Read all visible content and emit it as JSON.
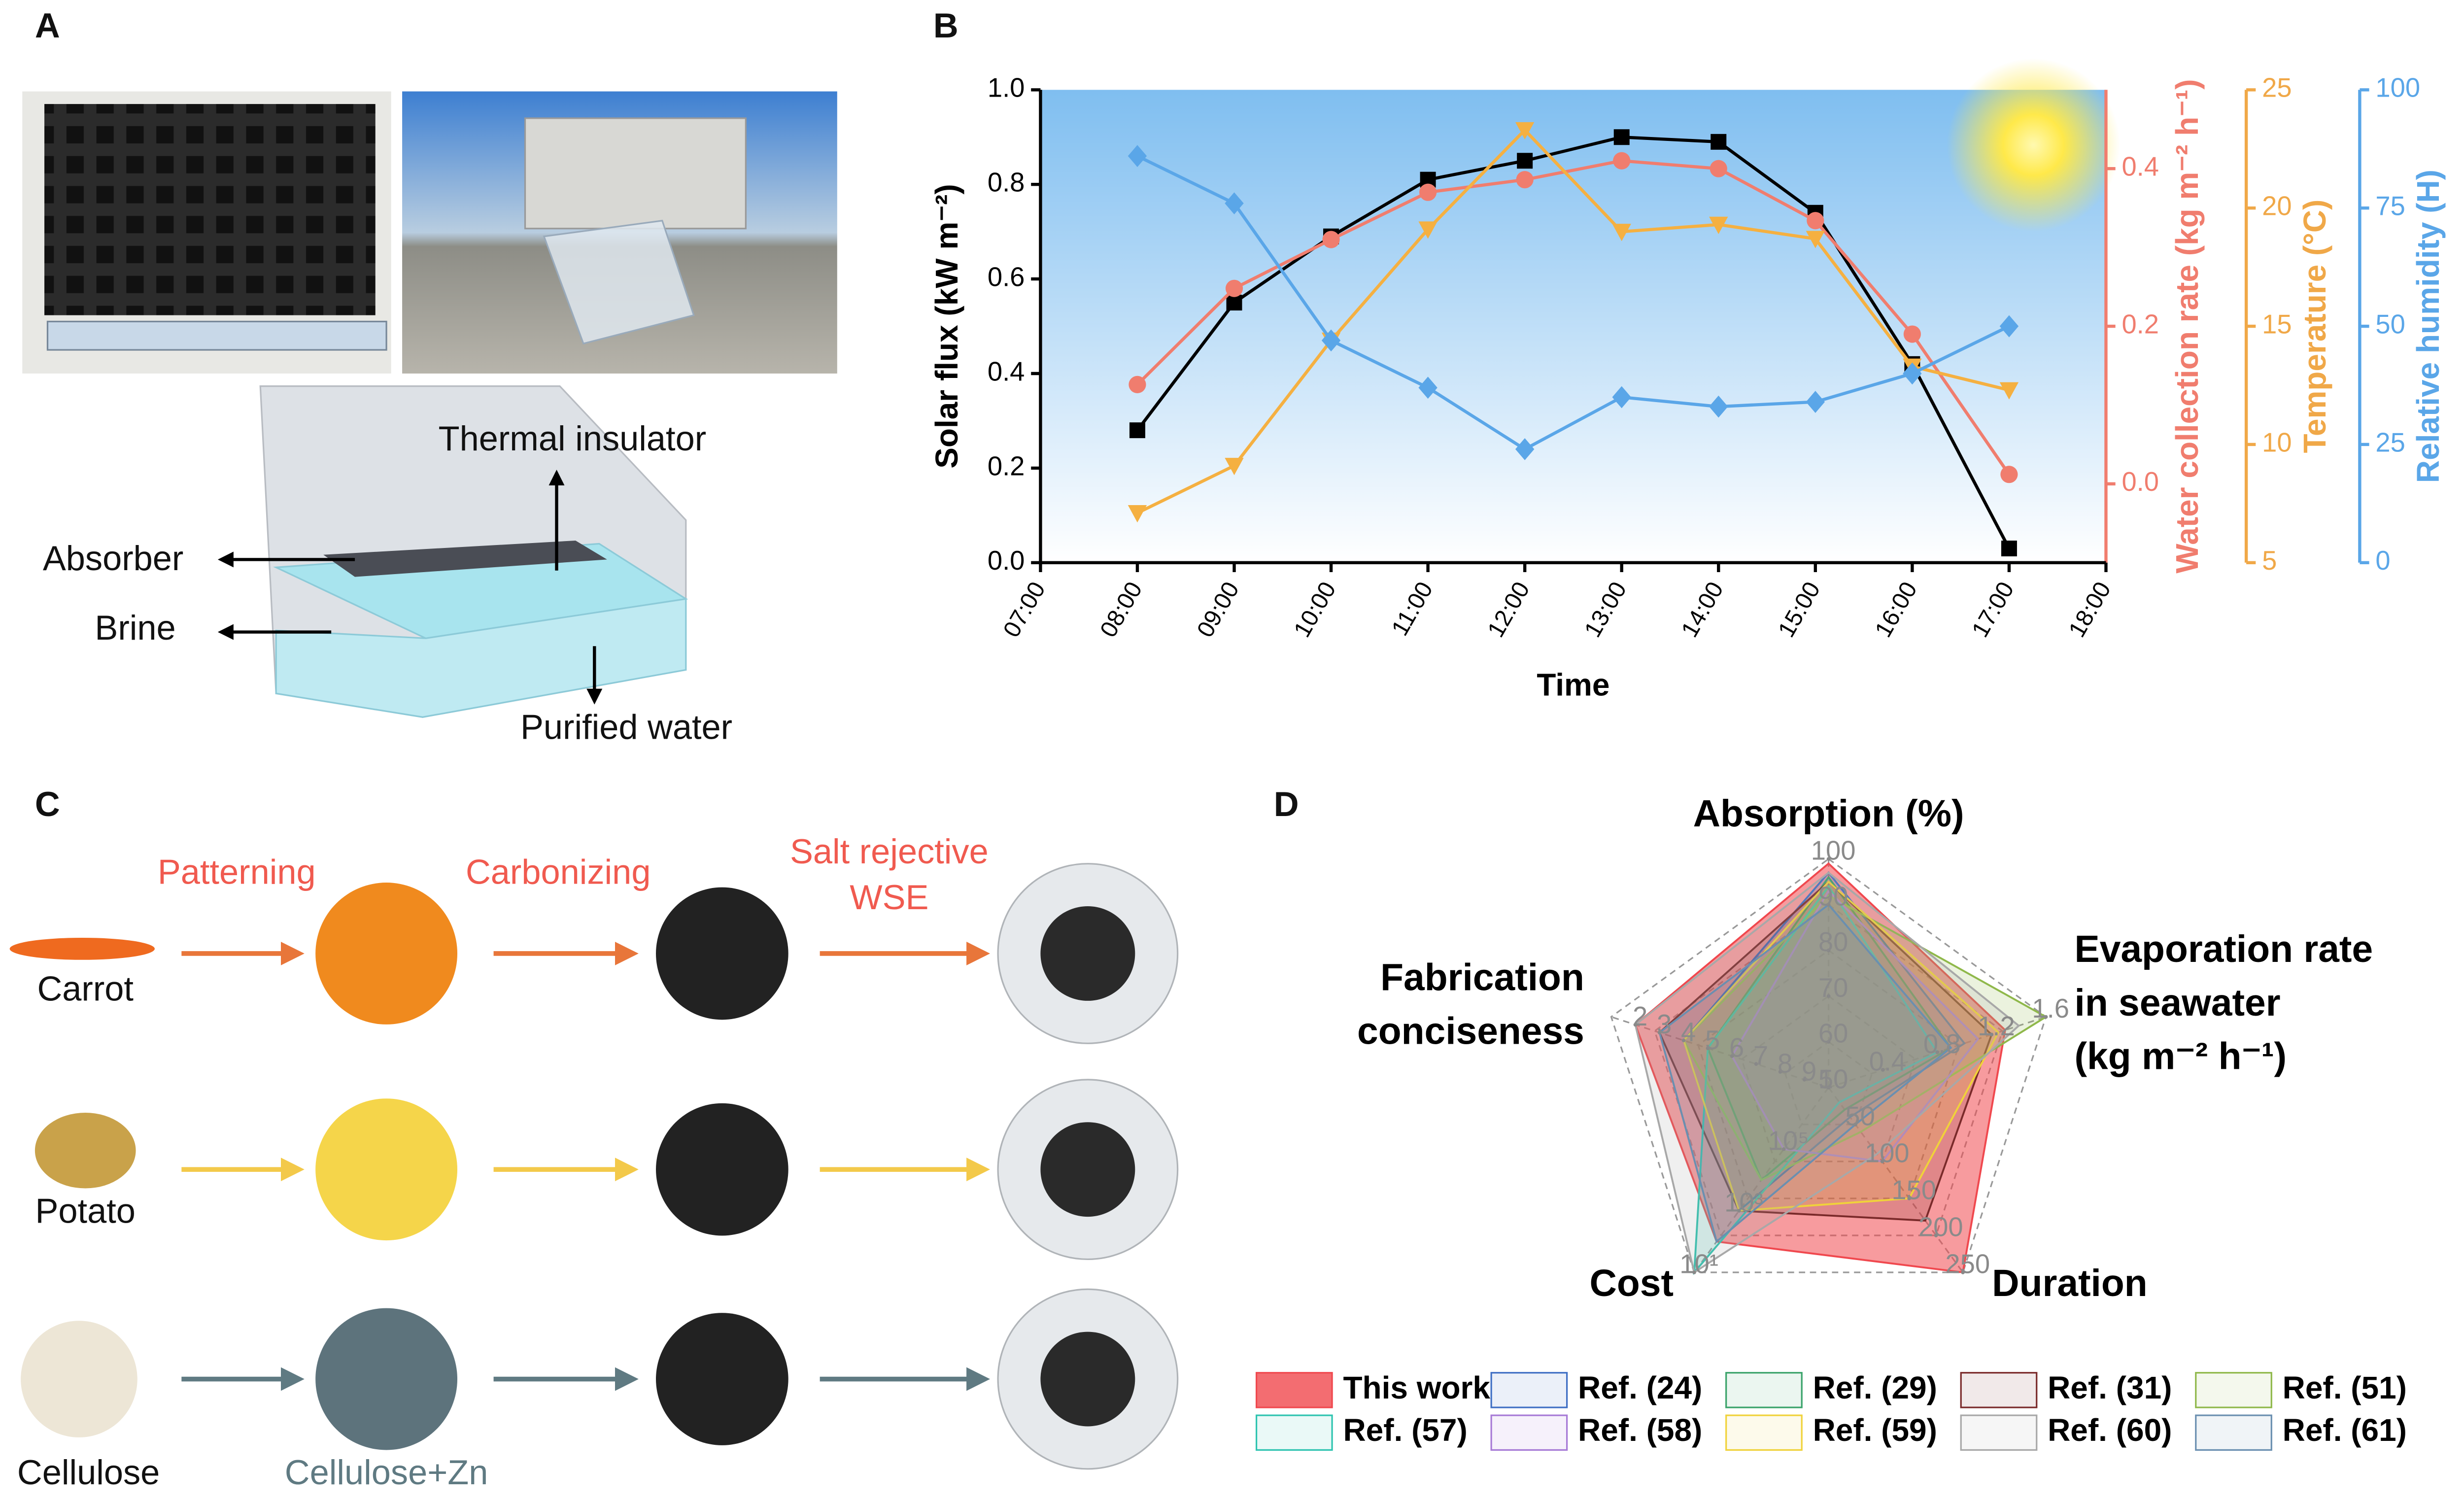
{
  "panel_labels": [
    "A",
    "B",
    "C",
    "D"
  ],
  "panel_a": {
    "labels": [
      "Thermal insulator",
      "Absorber",
      "Brine",
      "Purified water"
    ]
  },
  "panel_c": {
    "steps": [
      [
        "Patterning"
      ],
      [
        "Carbonizing"
      ],
      [
        "Salt rejective",
        "WSE"
      ]
    ],
    "materials": [
      "Carrot",
      "Potato",
      "Cellulose"
    ],
    "intermediate": "Cellulose+Zn"
  },
  "chart_data": [
    {
      "type": "line",
      "x": [
        "07:00",
        "08:00",
        "09:00",
        "10:00",
        "11:00",
        "12:00",
        "13:00",
        "14:00",
        "15:00",
        "16:00",
        "17:00",
        "18:00"
      ],
      "xlabel": "Time",
      "ylabel": "Solar flux (kW m⁻²)",
      "y2label": "Water collection rate (kg m⁻² h⁻¹)",
      "y3label": "Temperature (°C)",
      "y4label": "Relative humidity (H)",
      "ylim": [
        0,
        1
      ],
      "yticks": [
        {
          "value": 0,
          "label": "0.0"
        },
        0.2,
        0.4,
        0.6,
        0.8,
        {
          "value": 1,
          "label": "1.0"
        }
      ],
      "y2lim": [
        -0.1,
        0.5
      ],
      "y2ticks": [
        {
          "value": 0,
          "label": "0.0"
        },
        0.2,
        0.4
      ],
      "y3lim": [
        5,
        25
      ],
      "y3ticks": [
        5,
        10,
        15,
        20,
        25
      ],
      "y4lim": [
        0,
        100
      ],
      "y4ticks": [
        0,
        25,
        50,
        75,
        100
      ],
      "series": [
        {
          "color": "#000000",
          "marker": "square",
          "axis": "y",
          "values": [
            null,
            0.28,
            0.55,
            0.69,
            0.81,
            0.85,
            0.9,
            0.89,
            0.74,
            0.42,
            0.03,
            null
          ]
        },
        {
          "color": "#f07d6e",
          "marker": "circle",
          "axis": "y2",
          "values": [
            null,
            0.126,
            0.248,
            0.31,
            0.37,
            0.386,
            0.41,
            0.4,
            0.334,
            0.19,
            0.012,
            null
          ]
        },
        {
          "color": "#f5b041",
          "marker": "triangle-down",
          "axis": "y3",
          "values": [
            null,
            7.1,
            9.1,
            14.4,
            19.1,
            23.3,
            19.0,
            19.3,
            18.7,
            13.3,
            12.3,
            null
          ]
        },
        {
          "color": "#5aa6e8",
          "marker": "diamond",
          "axis": "y4",
          "values": [
            null,
            86,
            76,
            47,
            37,
            24,
            35,
            33,
            34,
            40,
            50,
            null
          ]
        }
      ]
    },
    {
      "type": "radar",
      "axes": [
        {
          "label": [
            "Absorption (%)"
          ],
          "lim": [
            50,
            100
          ],
          "ticks": [
            50,
            60,
            70,
            80,
            90,
            100
          ]
        },
        {
          "label": [
            "Evaporation rate",
            "in seawater",
            "(kg m⁻² h⁻¹)"
          ],
          "lim": [
            0,
            1.6
          ],
          "ticks": [
            0.4,
            0.8,
            1.2,
            1.6
          ]
        },
        {
          "label": [
            "Duration"
          ],
          "lim": [
            0,
            250
          ],
          "ticks": [
            50,
            100,
            150,
            200,
            250
          ]
        },
        {
          "label": [
            "Cost"
          ],
          "scale": "log",
          "lim": [
            10000000,
            10
          ],
          "ticks": [
            {
              "value": 100000,
              "label": "10⁵"
            },
            {
              "value": 1000,
              "label": "10³"
            },
            {
              "value": 10,
              "label": "10¹"
            }
          ]
        },
        {
          "label": [
            "Fabrication",
            "conciseness"
          ],
          "lim": [
            10,
            1
          ],
          "ticks": [
            10,
            9,
            8,
            7,
            6,
            5,
            4,
            3,
            2
          ]
        }
      ],
      "legend": "bottom",
      "series": [
        {
          "name": "This work",
          "color": "#f0484e",
          "values": [
            99,
            1.3,
            250,
            100,
            2
          ]
        },
        {
          "name": "Ref. (24)",
          "color": "#3f6fc4",
          "values": [
            97,
            1.0,
            40,
            1000,
            4
          ]
        },
        {
          "name": "Ref. (29)",
          "color": "#3aa36a",
          "values": [
            96,
            0.9,
            30,
            10000,
            5
          ]
        },
        {
          "name": "Ref. (31)",
          "color": "#7a2a2a",
          "values": [
            95,
            1.2,
            180,
            1000,
            3
          ]
        },
        {
          "name": "Ref. (51)",
          "color": "#8fb84a",
          "values": [
            92,
            1.6,
            60,
            10000,
            4
          ]
        },
        {
          "name": "Ref. (57)",
          "color": "#2ec4b0",
          "values": [
            94,
            0.8,
            20,
            10,
            5
          ]
        },
        {
          "name": "Ref. (58)",
          "color": "#a77ad6",
          "values": [
            93,
            1.1,
            100,
            100000,
            6
          ]
        },
        {
          "name": "Ref. (59)",
          "color": "#f0d23a",
          "values": [
            95,
            1.25,
            150,
            1000,
            4
          ]
        },
        {
          "name": "Ref. (60)",
          "color": "#a8a8a8",
          "values": [
            97,
            1.4,
            90,
            10,
            2
          ]
        },
        {
          "name": "Ref. (61)",
          "color": "#6a8fb0",
          "values": [
            90,
            0.9,
            50,
            100,
            3
          ]
        }
      ]
    }
  ]
}
